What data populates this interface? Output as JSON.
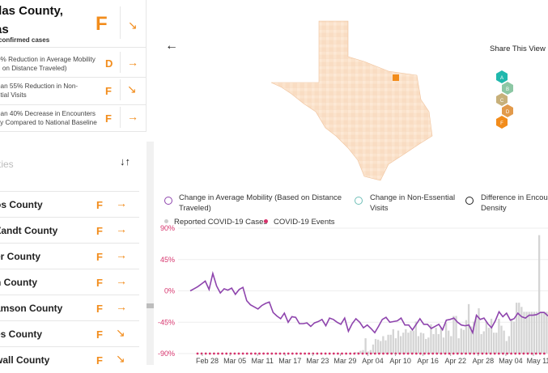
{
  "header": {
    "title_line1": "llas County,",
    "title_line2": "as",
    "subtitle": "confirmed cases",
    "overall_grade": "F"
  },
  "metrics": [
    {
      "label": "0% Reduction in Average Mobility\nd on Distance Traveled)",
      "grade": "D",
      "arrow": "→"
    },
    {
      "label": "han 55% Reduction in Non-\nntial Visits",
      "grade": "F",
      "arrow": "↘"
    },
    {
      "label": "han 40% Decrease in Encounters\nity Compared to National Baseline",
      "grade": "F",
      "arrow": "→"
    }
  ],
  "counties_header": "ties",
  "sort_icon": "↓↑",
  "counties": [
    {
      "name": "os County",
      "grade": "F",
      "arrow": "→"
    },
    {
      "name": "Zandt County",
      "grade": "F",
      "arrow": "→"
    },
    {
      "name": "er County",
      "grade": "F",
      "arrow": "→"
    },
    {
      "name": "n County",
      "grade": "F",
      "arrow": "→"
    },
    {
      "name": "amson County",
      "grade": "F",
      "arrow": "→"
    },
    {
      "name": "es County",
      "grade": "F",
      "arrow": "↘"
    },
    {
      "name": "wall County",
      "grade": "F",
      "arrow": "↘"
    }
  ],
  "share": {
    "label": "Share This View",
    "hexes": [
      {
        "letter": "A",
        "color": "#20b8ad"
      },
      {
        "letter": "B",
        "color": "#8cc7a4"
      },
      {
        "letter": "C",
        "color": "#c7b07a"
      },
      {
        "letter": "D",
        "color": "#e29a4b"
      },
      {
        "letter": "F",
        "color": "#f28c1b"
      }
    ]
  },
  "legend": {
    "mobility": "Change in Average Mobility (Based on Distance\nTraveled)",
    "nonessential": "Change in Non-Essential\nVisits",
    "encounter": "Difference in Encou\nDensity",
    "cases": "Reported COVID-19 Cases",
    "events": "COVID-19 Events",
    "mobility_color": "#8e44ad",
    "nonessential_color": "#6fbfb8",
    "encounter_color": "#222222"
  },
  "chart_data": {
    "type": "line",
    "y_ticks": [
      "90%",
      "45%",
      "0%",
      "-45%",
      "-90%"
    ],
    "ylim": [
      -90,
      90
    ],
    "x_ticks": [
      "Feb 28",
      "Mar 05",
      "Mar 11",
      "Mar 17",
      "Mar 23",
      "Mar 29",
      "Apr 04",
      "Apr 10",
      "Apr 16",
      "Apr 22",
      "Apr 28",
      "May 04",
      "May 11"
    ],
    "series": [
      {
        "name": "Change in Average Mobility (Based on Distance Traveled)",
        "values": [
          0,
          3,
          6,
          10,
          14,
          2,
          25,
          7,
          -3,
          3,
          1,
          4,
          -5,
          2,
          5,
          -14,
          -20,
          -23,
          -26,
          -21,
          -18,
          -16,
          -31,
          -36,
          -40,
          -32,
          -45,
          -37,
          -38,
          -47,
          -47,
          -46,
          -51,
          -46,
          -44,
          -41,
          -50,
          -39,
          -41,
          -45,
          -48,
          -39,
          -58,
          -47,
          -40,
          -45,
          -53,
          -49,
          -54,
          -60,
          -51,
          -41,
          -38,
          -45,
          -44,
          -43,
          -39,
          -49,
          -49,
          -56,
          -48,
          -40,
          -48,
          -48,
          -54,
          -51,
          -48,
          -56,
          -42,
          -41,
          -39,
          -45,
          -49,
          -50,
          -49,
          -60,
          -35,
          -41,
          -39,
          -47,
          -53,
          -43,
          -30,
          -37,
          -32,
          -42,
          -40,
          -32,
          -37,
          -39,
          -35,
          -35,
          -34,
          -31,
          -31,
          -36
        ]
      },
      {
        "name": "Reported COVID-19 Cases",
        "values": [
          0,
          0,
          0,
          0,
          0,
          0,
          0,
          0,
          0,
          0,
          0,
          0,
          0,
          0,
          0,
          0,
          0,
          0,
          0,
          0,
          0,
          0,
          0,
          0,
          0,
          0,
          0,
          0,
          0,
          0,
          0,
          0,
          0,
          0,
          0,
          0,
          0,
          0,
          0,
          0,
          0,
          0,
          0,
          0,
          0,
          0,
          0,
          0,
          0,
          0,
          0,
          0,
          0,
          0,
          0,
          0,
          0,
          0,
          0,
          0,
          0,
          0,
          0,
          0,
          0,
          0,
          0,
          0,
          0,
          0,
          2,
          2,
          4,
          5,
          22,
          3,
          5,
          13,
          21,
          20,
          18,
          25,
          19,
          27,
          27,
          35,
          22,
          33,
          25,
          30,
          35,
          30,
          33,
          33,
          46,
          25,
          30,
          29,
          21,
          23,
          42,
          28,
          37,
          28,
          38,
          23,
          44,
          33,
          25,
          54,
          54,
          22,
          36,
          34,
          48,
          71,
          39,
          46,
          53,
          65,
          28,
          32,
          46,
          37,
          50,
          30,
          30,
          50,
          40,
          33,
          18,
          25,
          50,
          46,
          73,
          73,
          67,
          60,
          60,
          60,
          60,
          60,
          60,
          170,
          60,
          60,
          60
        ]
      }
    ],
    "events": "daily markers along -90%"
  }
}
